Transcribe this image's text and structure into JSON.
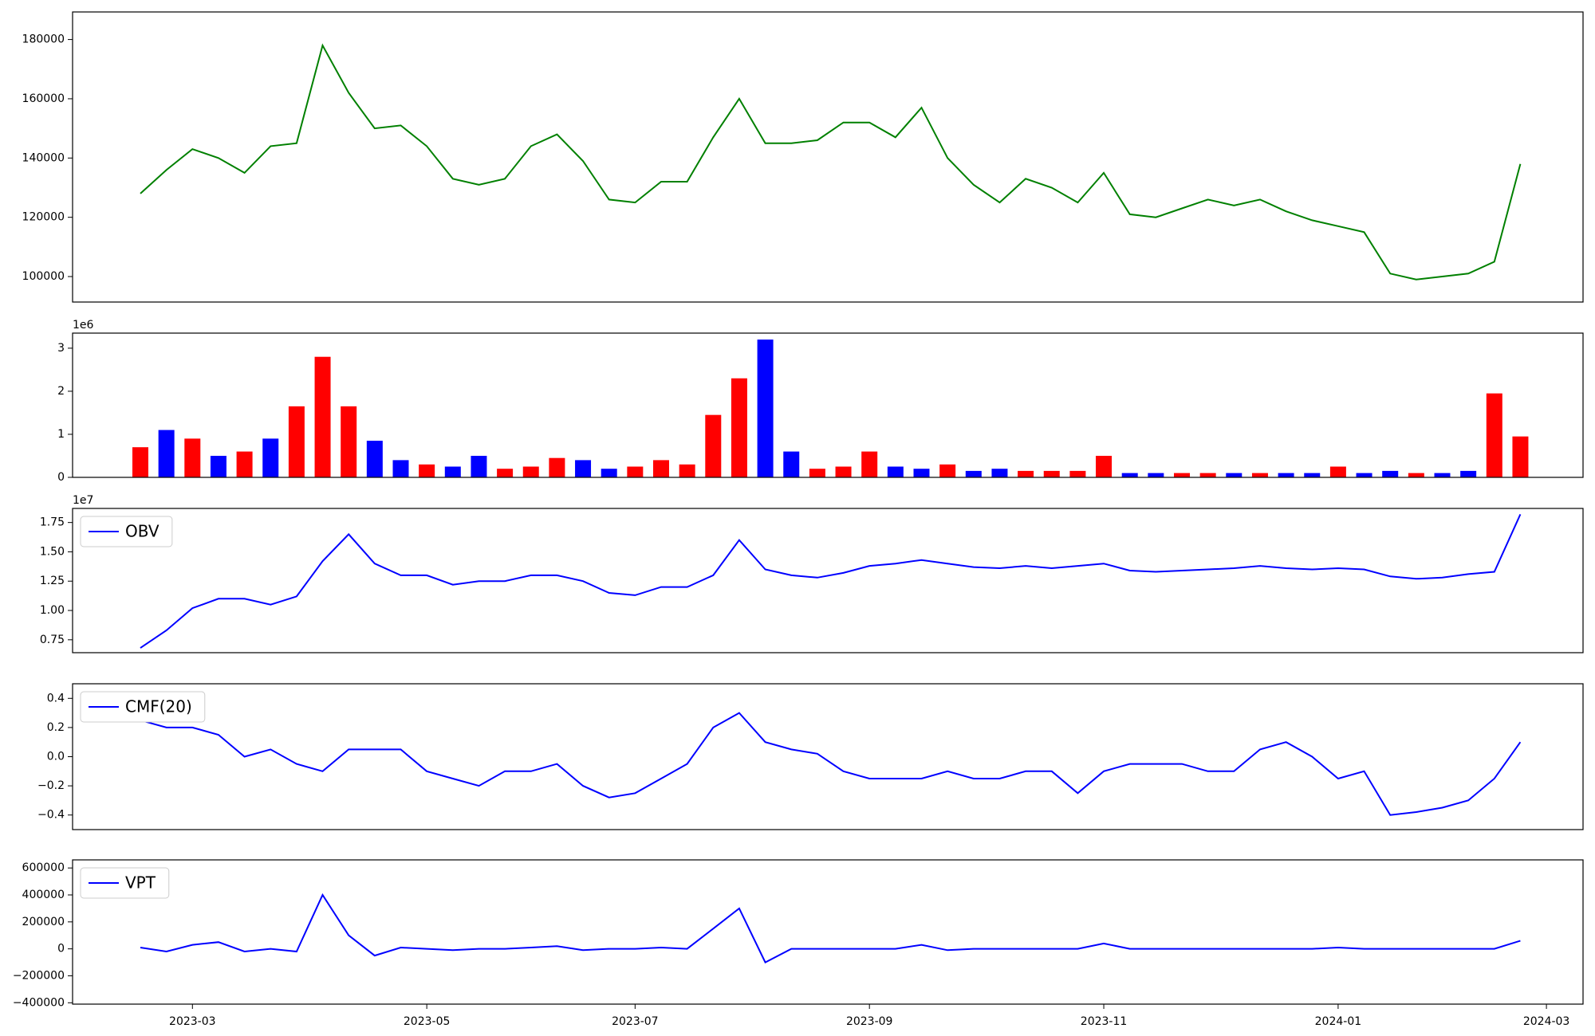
{
  "chart_data": [
    {
      "type": "line",
      "series": [
        {
          "color": "green",
          "values": [
            128000,
            136000,
            143000,
            140000,
            135000,
            144000,
            145000,
            178000,
            162000,
            150000,
            151000,
            144000,
            133000,
            131000,
            133000,
            144000,
            148000,
            139000,
            126000,
            125000,
            132000,
            132000,
            147000,
            160000,
            145000,
            145000,
            146000,
            152000,
            152000,
            147000,
            157000,
            140000,
            131000,
            125000,
            133000,
            130000,
            125000,
            135000,
            121000,
            120000,
            123000,
            126000,
            124000,
            126000,
            122000,
            119000,
            117000,
            115000,
            101000,
            99000,
            100000,
            101000,
            105000,
            138000,
            null
          ]
        }
      ],
      "ylim": [
        91400,
        189300
      ],
      "yticks": [
        100000,
        120000,
        140000,
        160000,
        180000
      ]
    },
    {
      "type": "bar",
      "y_offset_label": "1e6",
      "values": [
        0.7,
        1.1,
        0.9,
        0.5,
        0.6,
        0.9,
        1.65,
        2.8,
        1.65,
        0.85,
        0.4,
        0.3,
        0.25,
        0.5,
        0.2,
        0.25,
        0.45,
        0.4,
        0.2,
        0.25,
        0.4,
        0.3,
        1.45,
        2.3,
        3.2,
        0.6,
        0.2,
        0.25,
        0.6,
        0.25,
        0.2,
        0.3,
        0.15,
        0.2,
        0.15,
        0.15,
        0.15,
        0.5,
        0.1,
        0.1,
        0.1,
        0.1,
        0.1,
        0.1,
        0.1,
        0.1,
        0.25,
        0.1,
        0.15,
        0.1,
        0.1,
        0.15,
        1.95,
        0.95,
        null
      ],
      "colors": [
        "red",
        "blue",
        "red",
        "blue",
        "red",
        "blue",
        "red",
        "red",
        "red",
        "blue",
        "blue",
        "red",
        "blue",
        "blue",
        "red",
        "red",
        "red",
        "blue",
        "blue",
        "red",
        "red",
        "red",
        "red",
        "red",
        "blue",
        "blue",
        "red",
        "red",
        "red",
        "blue",
        "blue",
        "red",
        "blue",
        "blue",
        "red",
        "red",
        "red",
        "red",
        "blue",
        "blue",
        "red",
        "red",
        "blue",
        "red",
        "blue",
        "blue",
        "red",
        "blue",
        "blue",
        "red",
        "blue",
        "blue",
        "red",
        "red",
        "red"
      ],
      "ylim": [
        0,
        3.35
      ],
      "yticks": [
        0,
        1,
        2,
        3
      ]
    },
    {
      "type": "line",
      "y_offset_label": "1e7",
      "legend": "upper left",
      "series": [
        {
          "name": "OBV",
          "color": "blue",
          "values": [
            0.68,
            0.83,
            1.02,
            1.1,
            1.1,
            1.05,
            1.12,
            1.42,
            1.65,
            1.4,
            1.3,
            1.3,
            1.22,
            1.25,
            1.25,
            1.3,
            1.3,
            1.25,
            1.15,
            1.13,
            1.2,
            1.2,
            1.3,
            1.6,
            1.35,
            1.3,
            1.28,
            1.32,
            1.38,
            1.4,
            1.43,
            1.4,
            1.37,
            1.36,
            1.38,
            1.36,
            1.38,
            1.4,
            1.34,
            1.33,
            1.34,
            1.35,
            1.36,
            1.38,
            1.36,
            1.35,
            1.36,
            1.35,
            1.29,
            1.27,
            1.28,
            1.31,
            1.33,
            1.82,
            null
          ]
        }
      ],
      "ylim": [
        0.64,
        1.87
      ],
      "yticks": [
        {
          "value": 0.75,
          "label": "0.75"
        },
        {
          "value": 1,
          "label": "1.00"
        },
        {
          "value": 1.25,
          "label": "1.25"
        },
        {
          "value": 1.5,
          "label": "1.50"
        },
        {
          "value": 1.75,
          "label": "1.75"
        }
      ]
    },
    {
      "type": "line",
      "legend": "upper left",
      "series": [
        {
          "name": "CMF(20)",
          "color": "blue",
          "values": [
            0.25,
            0.2,
            0.2,
            0.15,
            0.0,
            0.05,
            -0.05,
            -0.1,
            0.05,
            0.05,
            0.05,
            -0.1,
            -0.15,
            -0.2,
            -0.1,
            -0.1,
            -0.05,
            -0.2,
            -0.28,
            -0.25,
            -0.15,
            -0.05,
            0.2,
            0.3,
            0.1,
            0.05,
            0.02,
            -0.1,
            -0.15,
            -0.15,
            -0.15,
            -0.1,
            -0.15,
            -0.15,
            -0.1,
            -0.1,
            -0.25,
            -0.1,
            -0.05,
            -0.05,
            -0.05,
            -0.1,
            -0.1,
            0.05,
            0.1,
            0.0,
            -0.15,
            -0.1,
            -0.4,
            -0.38,
            -0.35,
            -0.3,
            -0.15,
            0.1,
            null
          ]
        }
      ],
      "ylim": [
        -0.5,
        0.5
      ],
      "yticks": [
        {
          "value": -0.4,
          "label": "−0.4"
        },
        {
          "value": -0.2,
          "label": "−0.2"
        },
        {
          "value": 0,
          "label": "0.0"
        },
        {
          "value": 0.2,
          "label": "0.2"
        },
        {
          "value": 0.4,
          "label": "0.4"
        }
      ]
    },
    {
      "type": "line",
      "legend": "upper left",
      "x": [
        null,
        null,
        "2023-03",
        null,
        null,
        null,
        null,
        null,
        null,
        null,
        null,
        "2023-05",
        null,
        null,
        null,
        null,
        null,
        null,
        null,
        "2023-07",
        null,
        null,
        null,
        null,
        null,
        null,
        null,
        null,
        "2023-09",
        null,
        null,
        null,
        null,
        null,
        null,
        null,
        null,
        "2023-11",
        null,
        null,
        null,
        null,
        null,
        null,
        null,
        null,
        "2024-01",
        null,
        null,
        null,
        null,
        null,
        null,
        null,
        "2024-03"
      ],
      "series": [
        {
          "name": "VPT",
          "color": "blue",
          "values": [
            10000,
            -20000,
            30000,
            50000,
            -20000,
            0,
            -20000,
            400000,
            100000,
            -50000,
            10000,
            0,
            -10000,
            0,
            0,
            10000,
            20000,
            -10000,
            0,
            0,
            10000,
            0,
            150000,
            300000,
            -100000,
            0,
            0,
            0,
            0,
            0,
            30000,
            -10000,
            0,
            0,
            0,
            0,
            0,
            40000,
            0,
            0,
            0,
            0,
            0,
            0,
            0,
            0,
            10000,
            0,
            0,
            0,
            0,
            0,
            0,
            60000,
            null
          ]
        }
      ],
      "ylim": [
        -410000,
        660000
      ],
      "yticks": [
        {
          "value": -400000,
          "label": "−400000"
        },
        {
          "value": -200000,
          "label": "−200000"
        },
        0,
        200000,
        400000,
        600000
      ]
    }
  ]
}
